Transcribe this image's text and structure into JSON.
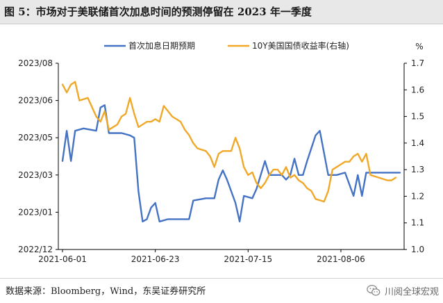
{
  "title": "图 5：市场对于美联储首次加息时间的预测停留在 2023 年一季度",
  "source": "数据来源：Bloomberg，Wind，东吴证券研究所",
  "watermark": "川阅全球宏观",
  "colors": {
    "series1": "#4472c4",
    "series2": "#f0a828",
    "axis": "#000000"
  },
  "chart_data": {
    "type": "line",
    "x_ticks": [
      "2021-06-01",
      "2021-06-23",
      "2021-07-15",
      "2021-08-06"
    ],
    "x_range": [
      "2021-06-01",
      "2021-08-20"
    ],
    "left_axis": {
      "ticks": [
        "2022/12",
        "2023/01",
        "2023/03",
        "2023/05",
        "2023/06",
        "2023/08"
      ],
      "min": 0,
      "max": 8
    },
    "right_axis": {
      "unit": "%",
      "ticks": [
        "1.0",
        "1.1",
        "1.2",
        "1.3",
        "1.4",
        "1.5",
        "1.6",
        "1.7"
      ],
      "min": 1.0,
      "max": 1.7
    },
    "legend_position": "top",
    "series": [
      {
        "name": "首次加息日期预期",
        "axis": "left",
        "points": [
          [
            "2021-06-01",
            3.8
          ],
          [
            "2021-06-02",
            5.1
          ],
          [
            "2021-06-03",
            3.8
          ],
          [
            "2021-06-04",
            5.1
          ],
          [
            "2021-06-06",
            5.2
          ],
          [
            "2021-06-09",
            5.1
          ],
          [
            "2021-06-10",
            6.1
          ],
          [
            "2021-06-11",
            6.2
          ],
          [
            "2021-06-12",
            5.0
          ],
          [
            "2021-06-15",
            5.0
          ],
          [
            "2021-06-17",
            4.9
          ],
          [
            "2021-06-18",
            4.8
          ],
          [
            "2021-06-19",
            2.5
          ],
          [
            "2021-06-20",
            1.2
          ],
          [
            "2021-06-21",
            1.3
          ],
          [
            "2021-06-22",
            1.8
          ],
          [
            "2021-06-23",
            2.0
          ],
          [
            "2021-06-24",
            1.2
          ],
          [
            "2021-06-26",
            1.3
          ],
          [
            "2021-07-01",
            1.3
          ],
          [
            "2021-07-02",
            2.1
          ],
          [
            "2021-07-05",
            2.2
          ],
          [
            "2021-07-07",
            2.2
          ],
          [
            "2021-07-08",
            3.0
          ],
          [
            "2021-07-09",
            3.4
          ],
          [
            "2021-07-10",
            3.0
          ],
          [
            "2021-07-12",
            2.0
          ],
          [
            "2021-07-13",
            1.2
          ],
          [
            "2021-07-14",
            2.3
          ],
          [
            "2021-07-16",
            2.2
          ],
          [
            "2021-07-17",
            2.6
          ],
          [
            "2021-07-18",
            3.2
          ],
          [
            "2021-07-19",
            3.8
          ],
          [
            "2021-07-20",
            3.2
          ],
          [
            "2021-07-23",
            3.2
          ],
          [
            "2021-07-24",
            3.0
          ],
          [
            "2021-07-25",
            3.2
          ],
          [
            "2021-07-26",
            3.9
          ],
          [
            "2021-07-27",
            3.2
          ],
          [
            "2021-07-28",
            3.2
          ],
          [
            "2021-07-29",
            3.8
          ],
          [
            "2021-07-31",
            4.9
          ],
          [
            "2021-08-01",
            5.1
          ],
          [
            "2021-08-03",
            3.2
          ],
          [
            "2021-08-05",
            3.2
          ],
          [
            "2021-08-07",
            3.3
          ],
          [
            "2021-08-09",
            2.3
          ],
          [
            "2021-08-10",
            3.2
          ],
          [
            "2021-08-11",
            2.3
          ],
          [
            "2021-08-12",
            3.3
          ],
          [
            "2021-08-14",
            3.3
          ],
          [
            "2021-08-20",
            3.3
          ]
        ]
      },
      {
        "name": "10Y美国国债收益率(右轴)",
        "axis": "right",
        "points": [
          [
            "2021-06-01",
            1.62
          ],
          [
            "2021-06-02",
            1.59
          ],
          [
            "2021-06-03",
            1.62
          ],
          [
            "2021-06-04",
            1.63
          ],
          [
            "2021-06-05",
            1.56
          ],
          [
            "2021-06-07",
            1.57
          ],
          [
            "2021-06-09",
            1.5
          ],
          [
            "2021-06-10",
            1.48
          ],
          [
            "2021-06-11",
            1.52
          ],
          [
            "2021-06-12",
            1.45
          ],
          [
            "2021-06-14",
            1.47
          ],
          [
            "2021-06-15",
            1.5
          ],
          [
            "2021-06-16",
            1.51
          ],
          [
            "2021-06-17",
            1.57
          ],
          [
            "2021-06-18",
            1.51
          ],
          [
            "2021-06-19",
            1.46
          ],
          [
            "2021-06-21",
            1.48
          ],
          [
            "2021-06-22",
            1.48
          ],
          [
            "2021-06-23",
            1.49
          ],
          [
            "2021-06-24",
            1.48
          ],
          [
            "2021-06-25",
            1.54
          ],
          [
            "2021-06-26",
            1.52
          ],
          [
            "2021-06-27",
            1.5
          ],
          [
            "2021-06-29",
            1.48
          ],
          [
            "2021-06-30",
            1.45
          ],
          [
            "2021-07-01",
            1.43
          ],
          [
            "2021-07-02",
            1.4
          ],
          [
            "2021-07-03",
            1.38
          ],
          [
            "2021-07-05",
            1.37
          ],
          [
            "2021-07-06",
            1.35
          ],
          [
            "2021-07-07",
            1.31
          ],
          [
            "2021-07-08",
            1.36
          ],
          [
            "2021-07-09",
            1.37
          ],
          [
            "2021-07-10",
            1.37
          ],
          [
            "2021-07-11",
            1.37
          ],
          [
            "2021-07-12",
            1.42
          ],
          [
            "2021-07-13",
            1.38
          ],
          [
            "2021-07-14",
            1.31
          ],
          [
            "2021-07-15",
            1.28
          ],
          [
            "2021-07-16",
            1.29
          ],
          [
            "2021-07-17",
            1.25
          ],
          [
            "2021-07-18",
            1.23
          ],
          [
            "2021-07-19",
            1.25
          ],
          [
            "2021-07-20",
            1.28
          ],
          [
            "2021-07-21",
            1.3
          ],
          [
            "2021-07-22",
            1.3
          ],
          [
            "2021-07-23",
            1.28
          ],
          [
            "2021-07-24",
            1.31
          ],
          [
            "2021-07-25",
            1.27
          ],
          [
            "2021-07-26",
            1.28
          ],
          [
            "2021-07-27",
            1.26
          ],
          [
            "2021-07-28",
            1.25
          ],
          [
            "2021-07-29",
            1.23
          ],
          [
            "2021-07-30",
            1.22
          ],
          [
            "2021-07-31",
            1.19
          ],
          [
            "2021-08-02",
            1.18
          ],
          [
            "2021-08-03",
            1.22
          ],
          [
            "2021-08-04",
            1.3
          ],
          [
            "2021-08-05",
            1.31
          ],
          [
            "2021-08-06",
            1.32
          ],
          [
            "2021-08-07",
            1.33
          ],
          [
            "2021-08-08",
            1.33
          ],
          [
            "2021-08-09",
            1.35
          ],
          [
            "2021-08-10",
            1.36
          ],
          [
            "2021-08-11",
            1.33
          ],
          [
            "2021-08-12",
            1.36
          ],
          [
            "2021-08-13",
            1.28
          ],
          [
            "2021-08-15",
            1.27
          ],
          [
            "2021-08-17",
            1.26
          ],
          [
            "2021-08-18",
            1.26
          ],
          [
            "2021-08-19",
            1.27
          ]
        ]
      }
    ]
  }
}
